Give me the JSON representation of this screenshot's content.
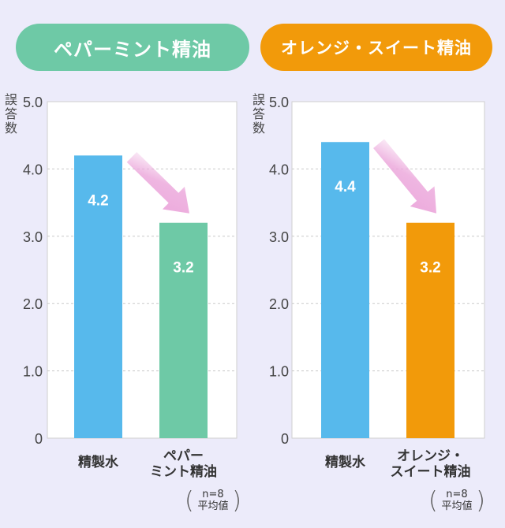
{
  "chart_data": [
    {
      "type": "bar",
      "title": "ペパーミント精油",
      "title_color": "#6ec9a6",
      "ylabel": "誤答数",
      "ylim": [
        0,
        5.0
      ],
      "yticks": [
        "0",
        "1.0",
        "2.0",
        "3.0",
        "4.0",
        "5.0"
      ],
      "grid": "dashed",
      "categories": [
        "精製水",
        "ペパー\nミント精油"
      ],
      "values": [
        4.2,
        3.2
      ],
      "value_labels": [
        "4.2",
        "3.2"
      ],
      "colors": [
        "#57b9ec",
        "#6ec9a6"
      ],
      "arrow_color": "#eca9dc",
      "note": [
        "n=8",
        "平均値"
      ]
    },
    {
      "type": "bar",
      "title": "オレンジ・スイート精油",
      "title_color": "#f29a0a",
      "ylabel": "誤答数",
      "ylim": [
        0,
        5.0
      ],
      "yticks": [
        "0",
        "1.0",
        "2.0",
        "3.0",
        "4.0",
        "5.0"
      ],
      "grid": "dashed",
      "categories": [
        "精製水",
        "オレンジ・\nスイート精油"
      ],
      "values": [
        4.4,
        3.2
      ],
      "value_labels": [
        "4.4",
        "3.2"
      ],
      "colors": [
        "#57b9ec",
        "#f29a0a"
      ],
      "arrow_color": "#eca9dc",
      "note": [
        "n=8",
        "平均値"
      ]
    }
  ]
}
